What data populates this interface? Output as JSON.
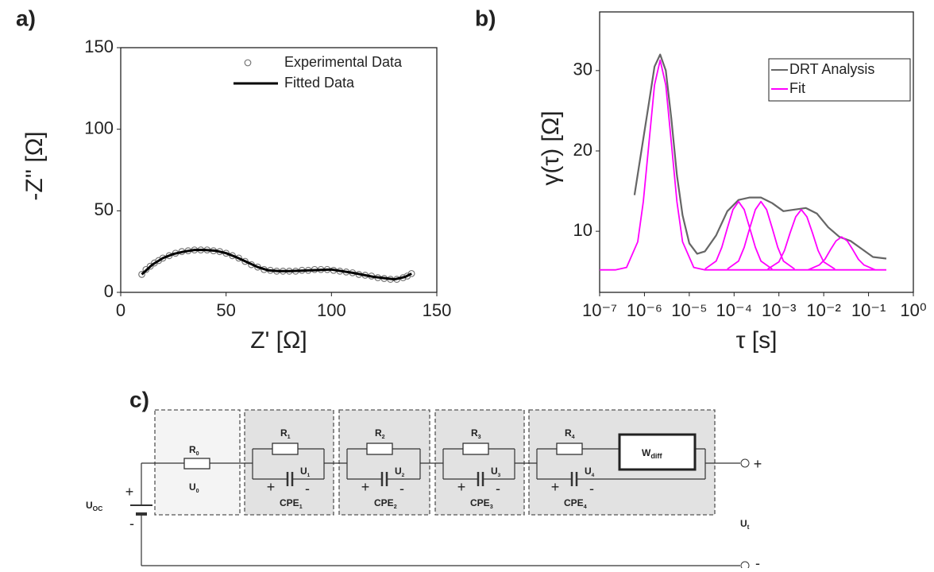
{
  "chart_data": [
    {
      "type": "scatter",
      "panel_label": "a)",
      "x_label": "Z' [Ω]",
      "y_label": "-Z'' [Ω]",
      "xlim": [
        0,
        150
      ],
      "ylim": [
        0,
        150
      ],
      "xticks": [
        0,
        50,
        100,
        150
      ],
      "yticks": [
        0,
        50,
        100,
        150
      ],
      "legend": "upper right",
      "legend_frame": false,
      "series": [
        {
          "name": "Experimental Data",
          "style": "markers",
          "color": "#777777",
          "x": [
            10,
            12,
            14,
            16,
            18,
            20,
            23,
            26,
            29,
            32,
            35,
            38,
            41,
            44,
            47,
            50,
            53,
            56,
            59,
            62,
            65,
            68,
            71,
            74,
            77,
            80,
            83,
            86,
            89,
            92,
            95,
            98,
            101,
            104,
            107,
            110,
            113,
            116,
            119,
            122,
            125,
            128,
            131,
            134,
            136,
            138
          ],
          "values": [
            11,
            14,
            16,
            18,
            19.5,
            21,
            22.5,
            24,
            25,
            25.5,
            26,
            26,
            26,
            25.5,
            25,
            24,
            22.5,
            21,
            19,
            17,
            15.5,
            14,
            13.5,
            13,
            13,
            13,
            13,
            13.5,
            13.5,
            14,
            14,
            14,
            13.5,
            13,
            12.5,
            12,
            11,
            10.5,
            10,
            9,
            8.5,
            8,
            8,
            9,
            10,
            11.5
          ]
        },
        {
          "name": "Fitted Data",
          "style": "line",
          "color": "#000000",
          "x": [
            10,
            15,
            20,
            25,
            30,
            35,
            40,
            45,
            50,
            55,
            60,
            65,
            70,
            75,
            80,
            90,
            100,
            110,
            120,
            130,
            135,
            138
          ],
          "values": [
            11,
            17,
            21,
            23.5,
            25,
            26,
            26,
            25.5,
            24,
            21.5,
            18.5,
            15.5,
            13.5,
            13,
            13,
            13.5,
            14,
            12,
            9.5,
            8,
            9.5,
            11.5
          ]
        }
      ]
    },
    {
      "type": "line",
      "panel_label": "b)",
      "x_log": true,
      "x_label": "τ [s]",
      "y_label": "γ(τ) [Ω]",
      "xlim": [
        1e-07,
        1
      ],
      "ylim": [
        2.4,
        37.3
      ],
      "xticks": [
        {
          "value": 1e-07,
          "label": "10⁻⁷"
        },
        {
          "value": 1e-06,
          "label": "10⁻⁶"
        },
        {
          "value": 1e-05,
          "label": "10⁻⁵"
        },
        {
          "value": 0.0001,
          "label": "10⁻⁴"
        },
        {
          "value": 0.001,
          "label": "10⁻³"
        },
        {
          "value": 0.01,
          "label": "10⁻²"
        },
        {
          "value": 0.1,
          "label": "10⁻¹"
        },
        {
          "value": 1,
          "label": "10⁰"
        }
      ],
      "yticks": [
        10,
        20,
        30
      ],
      "legend": "upper right",
      "legend_frame": true,
      "series": [
        {
          "name": "DRT Analysis",
          "color": "#666666",
          "x": [
            6e-07,
            8e-07,
            1.26e-06,
            1.68e-06,
            2.24e-06,
            2.99e-06,
            3.98e-06,
            5.31e-06,
            7.08e-06,
            1e-05,
            1.5e-05,
            2.24e-05,
            3.98e-05,
            7.08e-05,
            0.000126,
            0.000224,
            0.000398,
            0.000708,
            0.00126,
            0.00224,
            0.00398,
            0.00708,
            0.0126,
            0.0224,
            0.0398,
            0.0708,
            0.126,
            0.25
          ],
          "values": [
            14.5,
            19,
            26,
            30.5,
            32,
            30,
            24,
            17,
            12,
            8.5,
            7.2,
            7.5,
            9.5,
            12.5,
            13.9,
            14.2,
            14.2,
            13.5,
            12.5,
            12.7,
            12.9,
            12.2,
            10.5,
            9.3,
            8.8,
            7.8,
            6.8,
            6.6
          ]
        },
        {
          "name": "Fit",
          "color": "#ff00ff",
          "peaks": [
            {
              "x": [
                1e-07,
                2.24e-07,
                3.98e-07,
                7.08e-07,
                9.44e-07,
                1.26e-06,
                1.68e-06,
                2.24e-06,
                2.99e-06,
                3.98e-06,
                5.31e-06,
                7.08e-06,
                1.26e-05,
                2.24e-05,
                0.25
              ],
              "values": [
                5.2,
                5.2,
                5.5,
                8.7,
                13.7,
                21.0,
                28.2,
                31.3,
                28.2,
                21.0,
                13.7,
                8.7,
                5.5,
                5.2,
                5.2
              ]
            },
            {
              "x": [
                2.24e-05,
                3.98e-05,
                5.31e-05,
                7.08e-05,
                9.44e-05,
                0.000126,
                0.000168,
                0.000224,
                0.000299,
                0.000398,
                0.000708
              ],
              "values": [
                5.3,
                6.3,
                8.0,
                10.4,
                12.7,
                13.7,
                12.7,
                10.4,
                8.0,
                6.3,
                5.3
              ]
            },
            {
              "x": [
                7.08e-05,
                0.000126,
                0.000168,
                0.000224,
                0.000299,
                0.000398,
                0.000531,
                0.000708,
                0.000944,
                0.00126,
                0.00224
              ],
              "values": [
                5.3,
                6.3,
                8.0,
                10.4,
                12.7,
                13.7,
                12.7,
                10.4,
                8.0,
                6.3,
                5.3
              ]
            },
            {
              "x": [
                0.000562,
                0.001,
                0.00133,
                0.00178,
                0.00237,
                0.00316,
                0.00422,
                0.00562,
                0.0075,
                0.01,
                0.0178
              ],
              "values": [
                5.3,
                6.2,
                7.6,
                9.8,
                11.8,
                12.7,
                11.8,
                9.8,
                7.6,
                6.2,
                5.3
              ]
            },
            {
              "x": [
                0.00447,
                0.00794,
                0.0106,
                0.0141,
                0.0188,
                0.0251,
                0.0335,
                0.0447,
                0.0596,
                0.0794,
                0.141
              ],
              "values": [
                5.2,
                5.8,
                6.5,
                7.7,
                8.8,
                9.3,
                8.8,
                7.7,
                6.5,
                5.8,
                5.2
              ]
            }
          ]
        }
      ]
    }
  ],
  "circuit": {
    "panel_label": "c)",
    "source": {
      "text": "U",
      "sub": "OC"
    },
    "source_plus": "+",
    "source_minus": "-",
    "R0": {
      "text": "R",
      "sub": "0"
    },
    "U0": {
      "text": "U",
      "sub": "0"
    },
    "blocks": [
      {
        "R": {
          "text": "R",
          "sub": "1"
        },
        "U": {
          "text": "U",
          "sub": "1"
        },
        "CPE": {
          "text": "CPE",
          "sub": "1"
        },
        "plus": "+",
        "minus": "-"
      },
      {
        "R": {
          "text": "R",
          "sub": "2"
        },
        "U": {
          "text": "U",
          "sub": "2"
        },
        "CPE": {
          "text": "CPE",
          "sub": "2"
        },
        "plus": "+",
        "minus": "-"
      },
      {
        "R": {
          "text": "R",
          "sub": "3"
        },
        "U": {
          "text": "U",
          "sub": "3"
        },
        "CPE": {
          "text": "CPE",
          "sub": "3"
        },
        "plus": "+",
        "minus": "-"
      },
      {
        "R": {
          "text": "R",
          "sub": "4"
        },
        "U": {
          "text": "U",
          "sub": "4"
        },
        "CPE": {
          "text": "CPE",
          "sub": "4"
        },
        "plus": "+",
        "minus": "-"
      }
    ],
    "W": {
      "text": "W",
      "sub": "diff"
    },
    "terminal_plus": "+",
    "terminal_minus": "-",
    "Ut": {
      "text": "U",
      "sub": "t"
    }
  }
}
